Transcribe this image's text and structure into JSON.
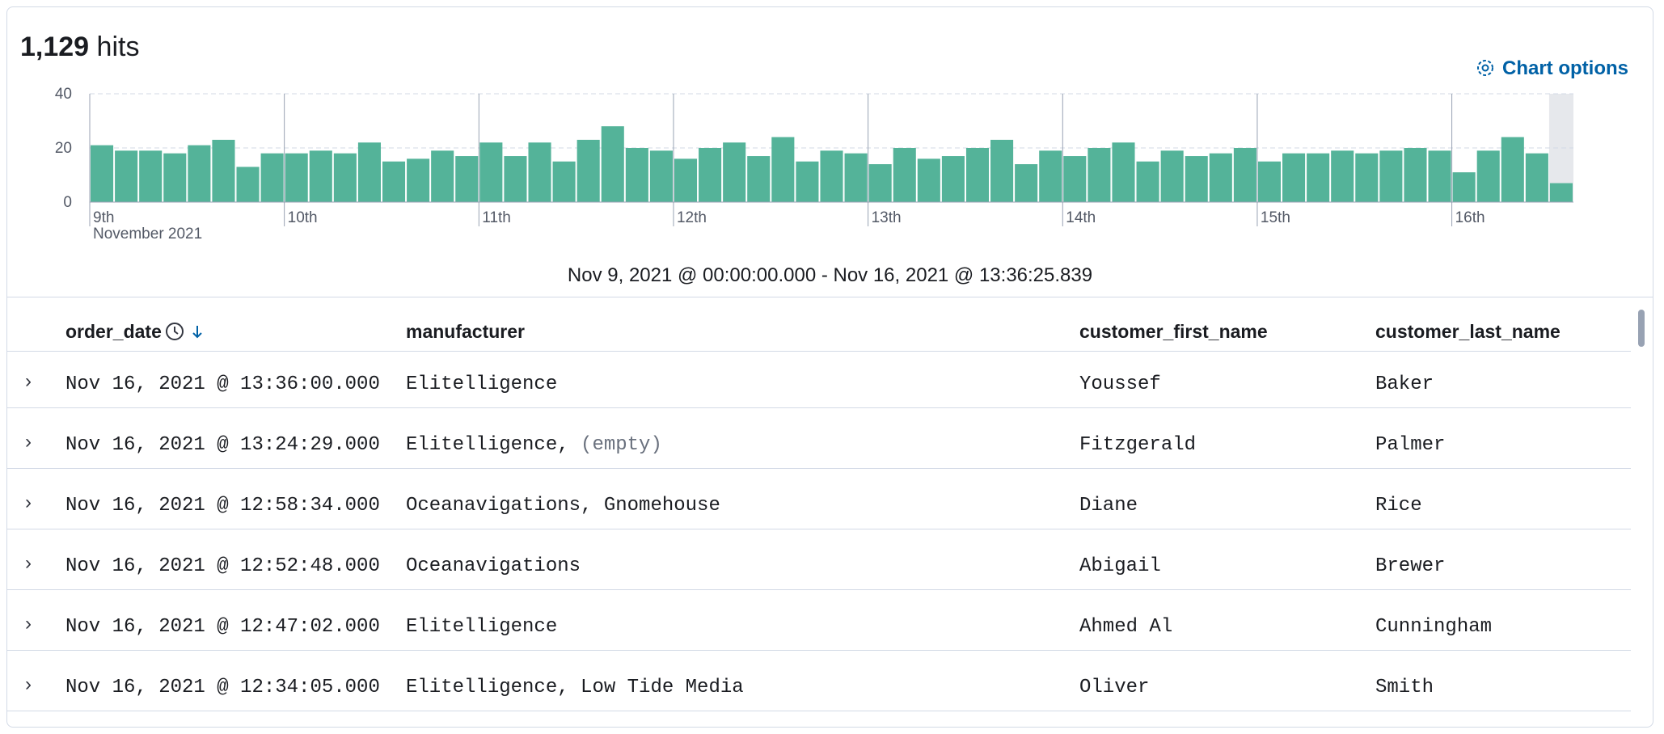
{
  "header": {
    "hits_count": "1,129",
    "hits_word": "hits",
    "chart_options": "Chart options"
  },
  "chart_data": {
    "type": "histogram",
    "bins": [
      0,
      0.125,
      0.25,
      0.375,
      0.5,
      0.625,
      0.75,
      0.875,
      1,
      1.125,
      1.25,
      1.375,
      1.5,
      1.625,
      1.75,
      1.875,
      2,
      2.125,
      2.25,
      2.375,
      2.5,
      2.625,
      2.75,
      2.875,
      3,
      3.125,
      3.25,
      3.375,
      3.5,
      3.625,
      3.75,
      3.875,
      4,
      4.125,
      4.25,
      4.375,
      4.5,
      4.625,
      4.75,
      4.875,
      5,
      5.125,
      5.25,
      5.375,
      5.5,
      5.625,
      5.75,
      5.875,
      6,
      6.125,
      6.25,
      6.375,
      6.5,
      6.625,
      6.75,
      6.875,
      7,
      7.125,
      7.25,
      7.375,
      7.5,
      7.625
    ],
    "values": [
      21,
      19,
      19,
      18,
      21,
      23,
      13,
      18,
      18,
      19,
      18,
      22,
      15,
      16,
      19,
      17,
      22,
      17,
      22,
      15,
      23,
      28,
      20,
      19,
      16,
      20,
      22,
      17,
      24,
      15,
      19,
      18,
      14,
      20,
      16,
      17,
      20,
      23,
      14,
      19,
      17,
      20,
      22,
      15,
      19,
      17,
      18,
      20,
      15,
      18,
      18,
      19,
      18,
      19,
      20,
      19,
      11,
      19,
      24,
      18,
      7
    ],
    "color": "#54b399",
    "xlim": [
      0,
      7.625
    ],
    "xticks": [
      {
        "value": 0,
        "label": "9th"
      },
      {
        "value": 1,
        "label": "10th"
      },
      {
        "value": 2,
        "label": "11th"
      },
      {
        "value": 3,
        "label": "12th"
      },
      {
        "value": 4,
        "label": "13th"
      },
      {
        "value": 5,
        "label": "14th"
      },
      {
        "value": 6,
        "label": "15th"
      },
      {
        "value": 7,
        "label": "16th"
      }
    ],
    "x_sublabel": "November 2021",
    "ylim": [
      0,
      40
    ],
    "yticks": [
      0,
      20,
      40
    ],
    "grid": true,
    "range_label": "Nov 9, 2021 @ 00:00:00.000 - Nov 16, 2021 @ 13:36:25.839"
  },
  "table": {
    "columns": [
      "order_date",
      "manufacturer",
      "customer_first_name",
      "customer_last_name"
    ],
    "rows": [
      {
        "cells": [
          "Nov 16, 2021 @ 13:36:00.000",
          "Elitelligence",
          "Youssef",
          "Baker"
        ]
      },
      {
        "cells": [
          "Nov 16, 2021 @ 13:24:29.000",
          "Elitelligence,",
          "Fitzgerald",
          "Palmer"
        ],
        "empty": "(empty)"
      },
      {
        "cells": [
          "Nov 16, 2021 @ 12:58:34.000",
          "Oceanavigations, Gnomehouse",
          "Diane",
          "Rice"
        ]
      },
      {
        "cells": [
          "Nov 16, 2021 @ 12:52:48.000",
          "Oceanavigations",
          "Abigail",
          "Brewer"
        ]
      },
      {
        "cells": [
          "Nov 16, 2021 @ 12:47:02.000",
          "Elitelligence",
          "Ahmed Al",
          "Cunningham"
        ]
      },
      {
        "cells": [
          "Nov 16, 2021 @ 12:34:05.000",
          "Elitelligence, Low Tide Media",
          "Oliver",
          "Smith"
        ]
      }
    ]
  }
}
